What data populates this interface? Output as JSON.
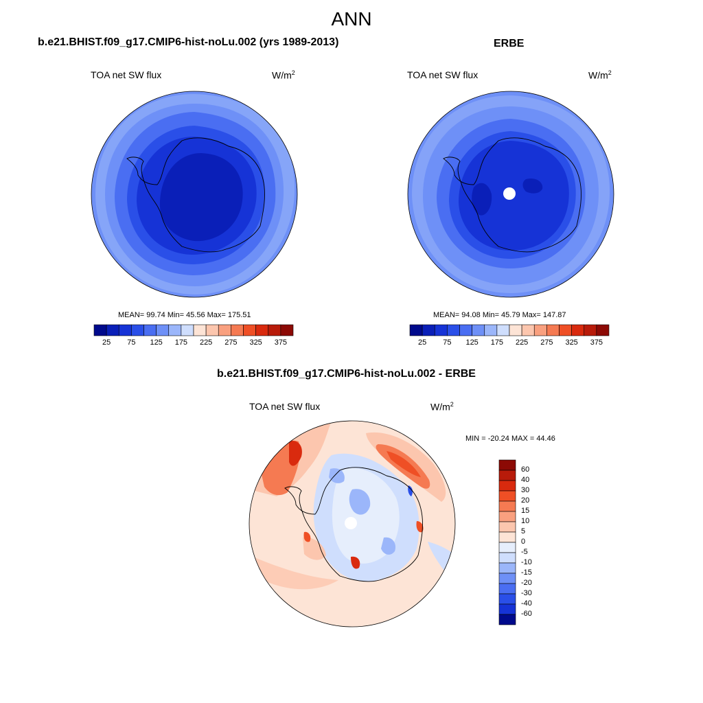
{
  "figure": {
    "title": "ANN"
  },
  "panels": [
    {
      "title": "b.e21.BHIST.f09_g17.CMIP6-hist-noLu.002 (yrs 1989-2013)",
      "variable": "TOA net SW flux",
      "unit": "W/m",
      "unit_sup": "2",
      "stats": {
        "text": "MEAN=  99.74  Min=  45.56  Max= 175.51",
        "mean": 99.74,
        "min": 45.56,
        "max": 175.51
      }
    },
    {
      "title": "ERBE",
      "variable": "TOA net SW flux",
      "unit": "W/m",
      "unit_sup": "2",
      "stats": {
        "text": "MEAN=  94.08  Min=  45.79  Max= 147.87",
        "mean": 94.08,
        "min": 45.79,
        "max": 147.87
      }
    },
    {
      "title": "b.e21.BHIST.f09_g17.CMIP6-hist-noLu.002 - ERBE",
      "variable": "TOA net SW flux",
      "unit": "W/m",
      "unit_sup": "2",
      "stats": {
        "text": "MIN = -20.24 MAX =  44.46",
        "min": -20.24,
        "max": 44.46
      }
    }
  ],
  "colorbar_fields": {
    "tick_labels": [
      "25",
      "75",
      "125",
      "175",
      "225",
      "275",
      "325",
      "375"
    ],
    "colors": [
      "#000a8c",
      "#0a1fb8",
      "#1633d6",
      "#2a4fe8",
      "#4a6ef2",
      "#6e90f7",
      "#9bb6fa",
      "#cfdefd",
      "#fde4d6",
      "#fcc6ae",
      "#f9a07f",
      "#f57a52",
      "#ef4f25",
      "#d92a0e",
      "#b81b0a",
      "#8c0a05"
    ]
  },
  "colorbar_diff": {
    "tick_labels": [
      "60",
      "40",
      "30",
      "20",
      "15",
      "10",
      "5",
      "0",
      "-5",
      "-10",
      "-15",
      "-20",
      "-30",
      "-40",
      "-60"
    ],
    "colors": [
      "#8c0a05",
      "#b81b0a",
      "#d92a0e",
      "#ef4f25",
      "#f57a52",
      "#f9a07f",
      "#fcc6ae",
      "#fde4d6",
      "#e6eefc",
      "#cfdefd",
      "#9bb6fa",
      "#6e90f7",
      "#4a6ef2",
      "#2a4fe8",
      "#1633d6",
      "#000a8c"
    ]
  }
}
